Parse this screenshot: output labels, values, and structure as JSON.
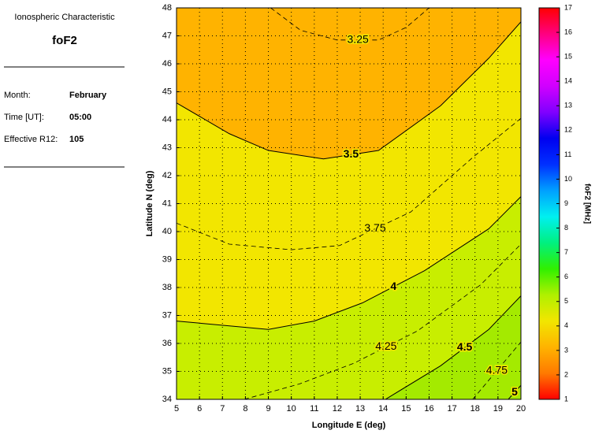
{
  "panel": {
    "heading": "Ionospheric Characteristic",
    "parameter": "foF2",
    "fields": [
      {
        "label": "Month:",
        "value": "February"
      },
      {
        "label": "Time [UT]:",
        "value": "05:00"
      },
      {
        "label": "Effective R12:",
        "value": "105"
      }
    ]
  },
  "chart_data": {
    "type": "contour",
    "x_label": "Longitude E (deg)",
    "y_label": "Latitude N (deg)",
    "xlim": [
      5,
      20
    ],
    "xticks": [
      5,
      6,
      7,
      8,
      9,
      10,
      11,
      12,
      13,
      14,
      15,
      16,
      17,
      18,
      19,
      20
    ],
    "ylim": [
      34,
      48
    ],
    "yticks": [
      34,
      35,
      36,
      37,
      38,
      39,
      40,
      41,
      42,
      43,
      44,
      45,
      46,
      47,
      48
    ],
    "grid": true,
    "background": "#f2e600",
    "contours": [
      {
        "level": 3.25,
        "dashed": true,
        "lon": [
          9.1,
          10.4,
          12,
          13.8,
          15,
          16
        ],
        "lat": [
          48,
          47.2,
          46.85,
          46.85,
          47.3,
          48
        ]
      },
      {
        "level": 3.5,
        "dashed": false,
        "fill": "#ffb300",
        "fill_side": "above",
        "lon": [
          5,
          7.3,
          9,
          11.4,
          13.8,
          16.5,
          18.6,
          20
        ],
        "lat": [
          44.6,
          43.5,
          42.9,
          42.6,
          42.9,
          44.5,
          46.2,
          47.5
        ]
      },
      {
        "level": 3.75,
        "dashed": true,
        "lon": [
          5,
          7.3,
          10,
          12.1,
          15.2,
          17.9,
          20
        ],
        "lat": [
          40.3,
          39.55,
          39.35,
          39.5,
          40.7,
          42.65,
          44.05
        ]
      },
      {
        "level": 4,
        "dashed": false,
        "fill": "#c8ee00",
        "fill_side": "below",
        "lon": [
          5,
          9,
          11,
          13.1,
          15.8,
          18.6,
          20
        ],
        "lat": [
          36.8,
          36.5,
          36.8,
          37.45,
          38.6,
          40.1,
          41.25
        ]
      },
      {
        "level": 4.25,
        "dashed": true,
        "lon": [
          7.95,
          10.35,
          12.75,
          15.5,
          18.25,
          20
        ],
        "lat": [
          34,
          34.55,
          35.3,
          36.45,
          38.1,
          39.55
        ]
      },
      {
        "level": 4.5,
        "dashed": false,
        "fill": "#a4ea00",
        "fill_side": "below",
        "lon": [
          14.1,
          16.5,
          18.6,
          20
        ],
        "lat": [
          34,
          35.2,
          36.5,
          37.7
        ]
      },
      {
        "level": 4.75,
        "dashed": true,
        "lon": [
          17.9,
          20
        ],
        "lat": [
          34,
          36.05
        ]
      },
      {
        "level": 5,
        "dashed": false,
        "lon": [
          19.45,
          20
        ],
        "lat": [
          34,
          34.5
        ]
      }
    ],
    "colorbar": {
      "label": "foF2 [MHz]",
      "clim": [
        1,
        17
      ],
      "cticks": [
        1,
        2,
        3,
        4,
        5,
        6,
        7,
        8,
        9,
        10,
        11,
        12,
        13,
        14,
        15,
        16,
        17
      ],
      "colors": [
        "#ff0000",
        "#ff7a00",
        "#ffb300",
        "#f2e600",
        "#b0f000",
        "#30f000",
        "#00f080",
        "#00f0f0",
        "#00a0ff",
        "#0030ff",
        "#0000f0",
        "#8000ff",
        "#d000ff",
        "#ff00ff",
        "#ff0080",
        "#ff0000"
      ]
    }
  }
}
